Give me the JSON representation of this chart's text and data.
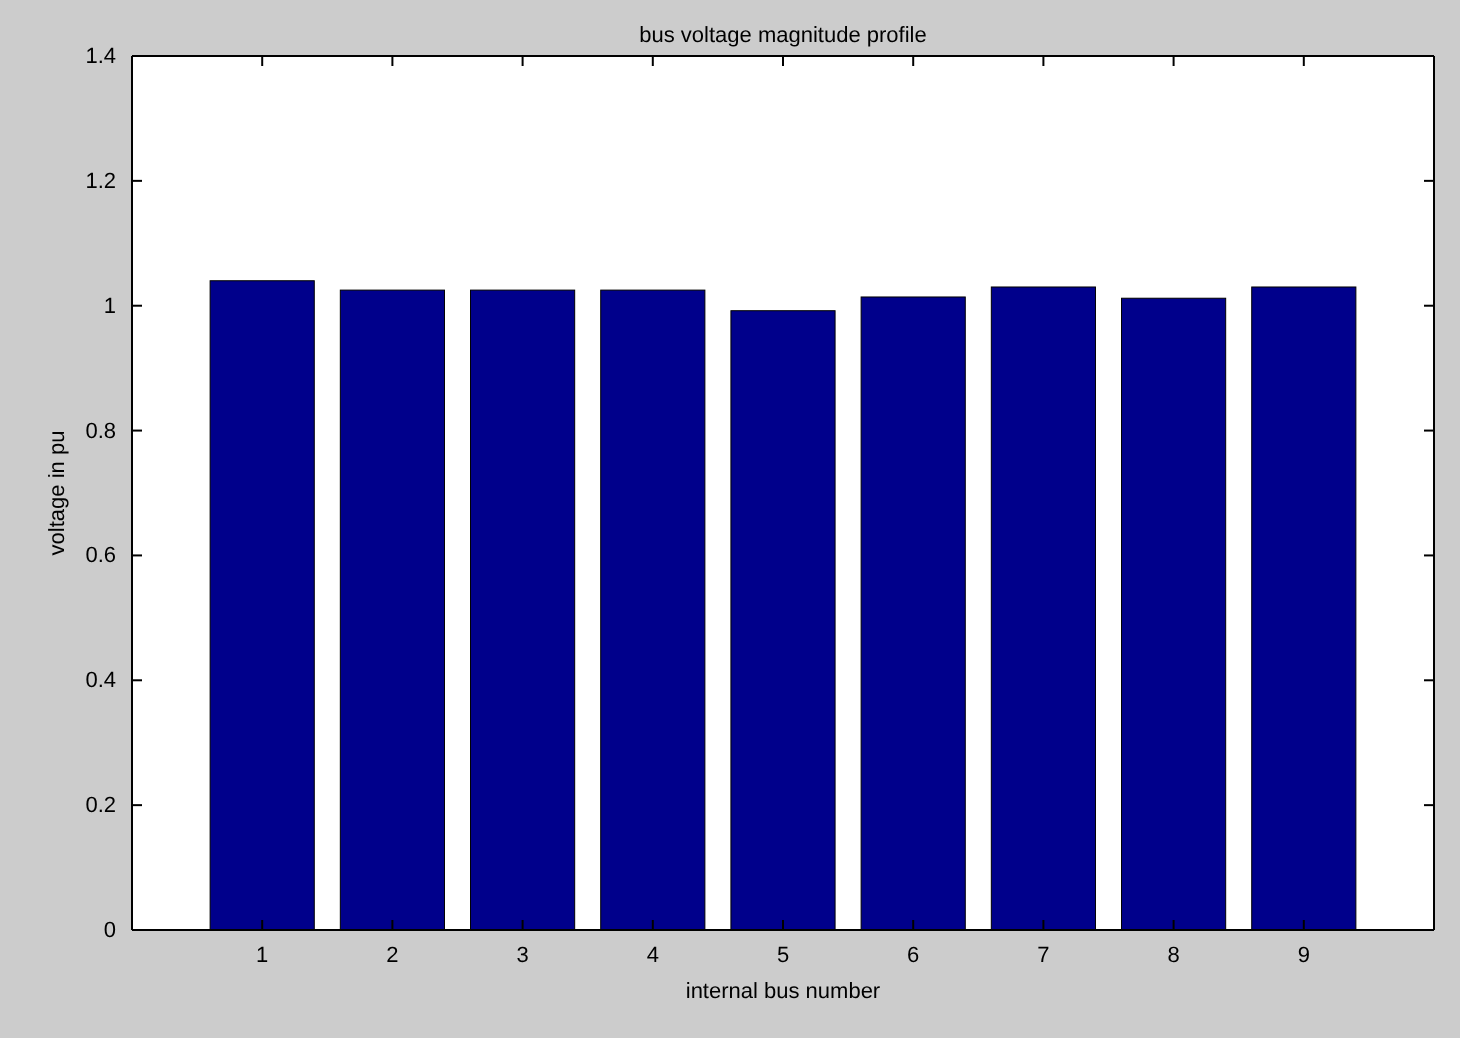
{
  "chart_data": {
    "type": "bar",
    "title": "bus voltage magnitude profile",
    "xlabel": "internal bus number",
    "ylabel": "voltage in pu",
    "categories": [
      "1",
      "2",
      "3",
      "4",
      "5",
      "6",
      "7",
      "8",
      "9"
    ],
    "values": [
      1.04,
      1.025,
      1.025,
      1.025,
      0.992,
      1.014,
      1.03,
      1.012,
      1.03
    ],
    "color": "#00008b",
    "ylim": [
      0,
      1.4
    ],
    "yticks": [
      0,
      0.2,
      0.4,
      0.6,
      0.8,
      1,
      1.2,
      1.4
    ],
    "grid": false
  }
}
